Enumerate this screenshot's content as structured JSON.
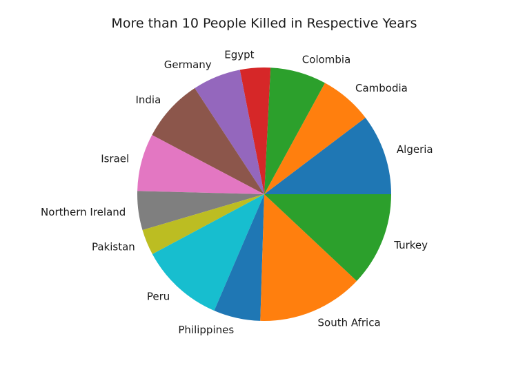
{
  "chart_data": {
    "type": "pie",
    "title": "More than 10 People Killed in Respective Years",
    "start_angle_deg": 0,
    "direction": "counterclockwise",
    "legend": "none",
    "slices": [
      {
        "label": "Algeria",
        "value": 10.4,
        "color": "#1f77b4"
      },
      {
        "label": "Cambodia",
        "value": 6.8,
        "color": "#ff7f0e"
      },
      {
        "label": "Colombia",
        "value": 7.2,
        "color": "#2ca02c"
      },
      {
        "label": "Egypt",
        "value": 3.9,
        "color": "#d62728"
      },
      {
        "label": "Germany",
        "value": 6.2,
        "color": "#9467bd"
      },
      {
        "label": "India",
        "value": 8.1,
        "color": "#8c564b"
      },
      {
        "label": "Israel",
        "value": 7.4,
        "color": "#e377c2"
      },
      {
        "label": "Northern Ireland",
        "value": 5.0,
        "color": "#7f7f7f"
      },
      {
        "label": "Pakistan",
        "value": 3.3,
        "color": "#bcbd22"
      },
      {
        "label": "Peru",
        "value": 10.8,
        "color": "#17becf"
      },
      {
        "label": "Philippines",
        "value": 6.0,
        "color": "#1f77b4"
      },
      {
        "label": "South Africa",
        "value": 13.6,
        "color": "#ff7f0e"
      },
      {
        "label": "Turkey",
        "value": 12.1,
        "color": "#2ca02c"
      }
    ]
  }
}
